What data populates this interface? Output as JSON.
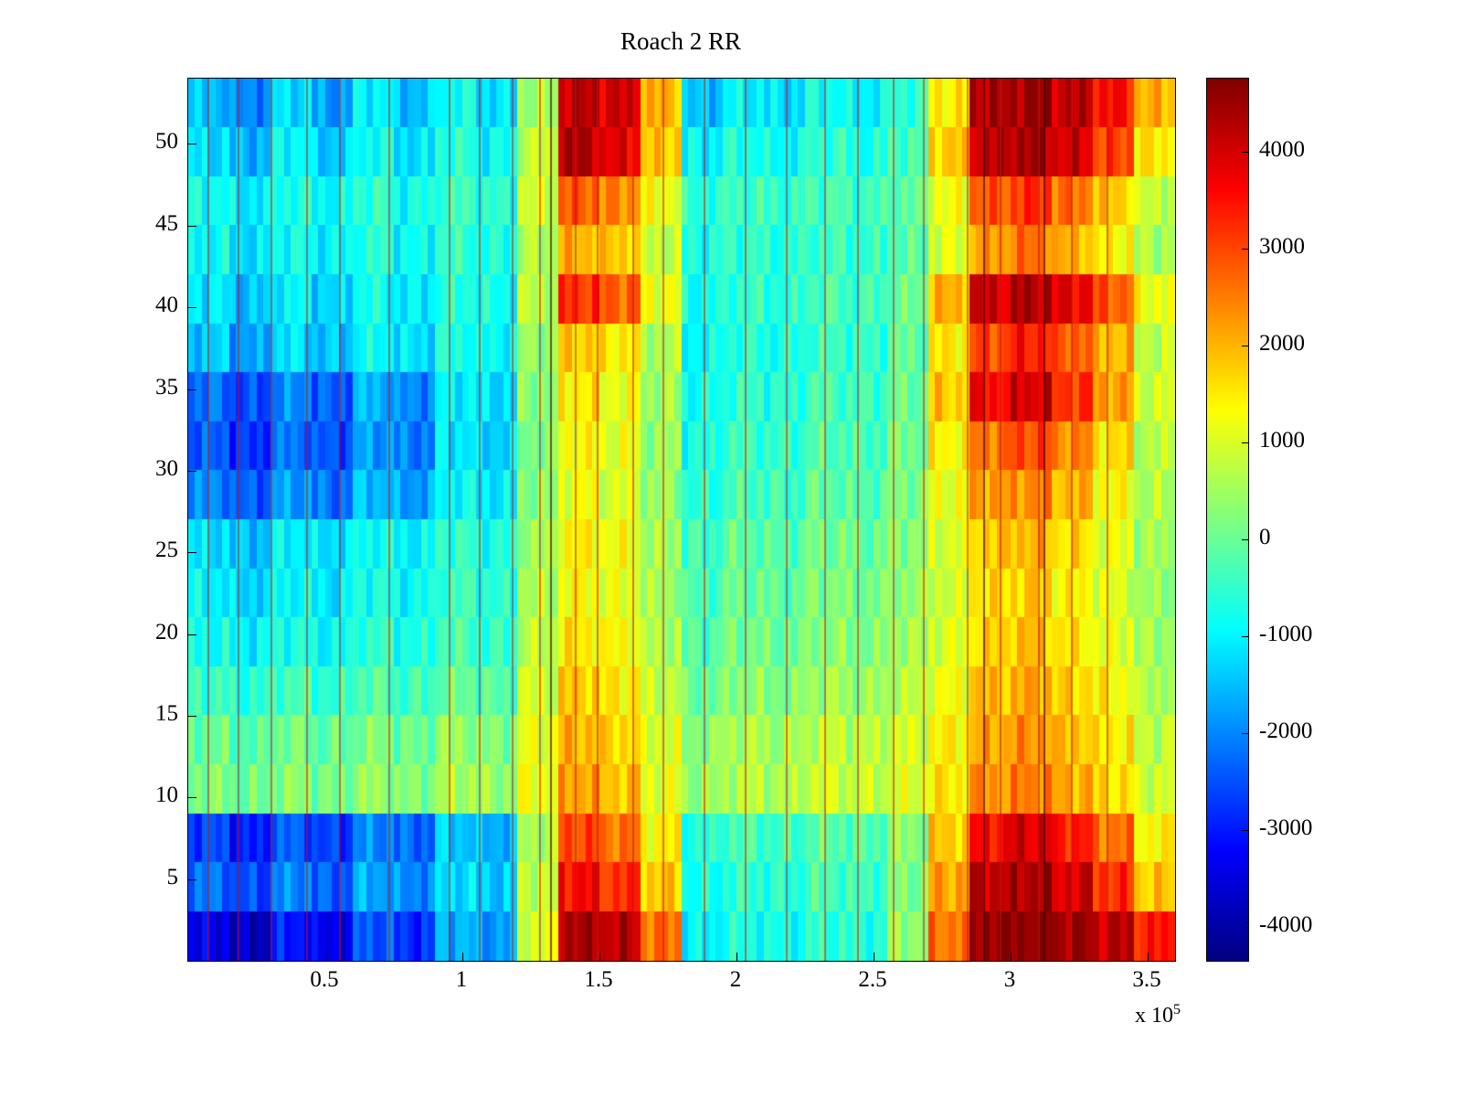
{
  "page": {
    "background": "#ffffff",
    "axis_color": "#000000"
  },
  "chart_data": {
    "type": "heatmap",
    "title": "Roach 2 RR",
    "colormap": "jet",
    "x_range_raw": [
      0,
      360000
    ],
    "x_units_displayed": "1e5",
    "y_range": [
      0,
      54
    ],
    "x_ticks_1e5": [
      0.5,
      1,
      1.5,
      2,
      2.5,
      3,
      3.5
    ],
    "x_tick_labels": [
      "0.5",
      "1",
      "1.5",
      "2",
      "2.5",
      "3",
      "3.5"
    ],
    "x_scale_label": {
      "prefix": "x 10",
      "exponent": "5"
    },
    "y_ticks": [
      5,
      10,
      15,
      20,
      25,
      30,
      35,
      40,
      45,
      50
    ],
    "y_tick_labels": [
      "5",
      "10",
      "15",
      "20",
      "25",
      "30",
      "35",
      "40",
      "45",
      "50"
    ],
    "colorbar": {
      "min": -4350,
      "max": 4750,
      "tick_values": [
        4000,
        3000,
        2000,
        1000,
        0,
        -1000,
        -2000,
        -3000,
        -4000
      ],
      "tick_labels": [
        "4000",
        "3000",
        "2000",
        "1000",
        "0",
        "-1000",
        "-2000",
        "-3000",
        "-4000"
      ]
    },
    "grid": {
      "orientation": "first row corresponds to top of plot (y 51-54), columns left to right (x 0 to 3.6e5)",
      "rows": 18,
      "cols": 24,
      "row_y_spans": [
        [
          51,
          54
        ],
        [
          48,
          51
        ],
        [
          45,
          48
        ],
        [
          42,
          45
        ],
        [
          39,
          42
        ],
        [
          36,
          39
        ],
        [
          33,
          36
        ],
        [
          30,
          33
        ],
        [
          27,
          30
        ],
        [
          24,
          27
        ],
        [
          21,
          24
        ],
        [
          18,
          21
        ],
        [
          15,
          18
        ],
        [
          12,
          15
        ],
        [
          9,
          12
        ],
        [
          6,
          9
        ],
        [
          3,
          6
        ],
        [
          0,
          3
        ]
      ],
      "values": [
        [
          -1500,
          -2000,
          -1200,
          -1800,
          -1000,
          -1500,
          -800,
          -1200,
          500,
          4200,
          4000,
          2000,
          -1500,
          -1000,
          -1200,
          -800,
          -1000,
          -500,
          1500,
          4300,
          4500,
          4200,
          3500,
          2000
        ],
        [
          -1200,
          -1600,
          -900,
          -1400,
          -800,
          -1200,
          -600,
          -900,
          800,
          4300,
          3800,
          1800,
          -1000,
          -700,
          -900,
          -500,
          -700,
          -300,
          1800,
          4200,
          4400,
          4000,
          3000,
          1500
        ],
        [
          -800,
          -1100,
          -700,
          -900,
          -500,
          -800,
          -400,
          -600,
          900,
          2800,
          2400,
          1200,
          -600,
          -400,
          -500,
          -300,
          -400,
          -100,
          1200,
          2800,
          3200,
          2600,
          1800,
          800
        ],
        [
          -900,
          -1200,
          -800,
          -1000,
          -600,
          -900,
          -500,
          -700,
          600,
          2000,
          1800,
          800,
          -700,
          -500,
          -600,
          -400,
          -500,
          -200,
          1000,
          2200,
          2600,
          2000,
          1400,
          600
        ],
        [
          -1100,
          -1500,
          -1000,
          -1300,
          -800,
          -1100,
          -600,
          -800,
          700,
          3200,
          2800,
          1200,
          -800,
          -500,
          -600,
          -300,
          -400,
          0,
          2000,
          4000,
          4300,
          3800,
          2800,
          1200
        ],
        [
          -1400,
          -1800,
          -1200,
          -1500,
          -900,
          -1200,
          -700,
          -900,
          400,
          1800,
          1500,
          600,
          -900,
          -600,
          -700,
          -400,
          -500,
          -100,
          1500,
          3000,
          3400,
          2800,
          2000,
          800
        ],
        [
          -2200,
          -2600,
          -2000,
          -2400,
          -1600,
          -2000,
          -1000,
          -1200,
          300,
          1500,
          1200,
          500,
          -800,
          -500,
          -600,
          -300,
          -400,
          0,
          1800,
          3600,
          4000,
          3200,
          2200,
          900
        ],
        [
          -2400,
          -2800,
          -2200,
          -2500,
          -1800,
          -2100,
          -1100,
          -1300,
          200,
          1300,
          1100,
          400,
          -700,
          -400,
          -500,
          -200,
          -300,
          100,
          1400,
          2600,
          3000,
          2400,
          1600,
          700
        ],
        [
          -2000,
          -2400,
          -1800,
          -2200,
          -1500,
          -1800,
          -900,
          -1100,
          300,
          1200,
          1000,
          400,
          -600,
          -300,
          -400,
          -100,
          -200,
          200,
          1200,
          2200,
          2400,
          2000,
          1300,
          600
        ],
        [
          -1200,
          -1500,
          -1000,
          -1200,
          -800,
          -1000,
          -500,
          -700,
          500,
          1400,
          1200,
          500,
          -400,
          -100,
          -200,
          100,
          0,
          300,
          1000,
          1800,
          2000,
          1600,
          1100,
          500
        ],
        [
          -1000,
          -1300,
          -900,
          -1100,
          -700,
          -900,
          -400,
          -600,
          600,
          1300,
          1100,
          500,
          -300,
          0,
          -100,
          200,
          100,
          400,
          900,
          1600,
          1800,
          1400,
          1000,
          400
        ],
        [
          -800,
          -1000,
          -700,
          -900,
          -500,
          -700,
          -300,
          -500,
          700,
          1500,
          1300,
          600,
          -200,
          100,
          0,
          300,
          200,
          500,
          1000,
          1700,
          1900,
          1500,
          1100,
          500
        ],
        [
          -400,
          -600,
          -300,
          -500,
          -200,
          -400,
          0,
          -200,
          900,
          1800,
          1500,
          800,
          0,
          300,
          200,
          500,
          400,
          700,
          1200,
          1900,
          2100,
          1700,
          1300,
          600
        ],
        [
          0,
          -200,
          100,
          -100,
          200,
          0,
          400,
          200,
          1100,
          2000,
          1700,
          1000,
          300,
          600,
          500,
          800,
          700,
          900,
          1400,
          2100,
          2300,
          1900,
          1500,
          800
        ],
        [
          200,
          0,
          300,
          100,
          400,
          200,
          600,
          400,
          1200,
          2200,
          1900,
          1100,
          400,
          700,
          600,
          900,
          800,
          1000,
          1500,
          2300,
          2500,
          2100,
          1600,
          900
        ],
        [
          -2600,
          -3000,
          -2400,
          -2700,
          -2000,
          -2300,
          -1400,
          -1600,
          600,
          3000,
          2600,
          1400,
          -600,
          -300,
          -400,
          -100,
          -200,
          300,
          1800,
          3600,
          4000,
          3400,
          2600,
          1400
        ],
        [
          -2200,
          -2600,
          -2000,
          -2400,
          -1700,
          -2000,
          -1200,
          -1400,
          800,
          3600,
          3200,
          1800,
          -800,
          -500,
          -600,
          -300,
          -400,
          200,
          2200,
          4200,
          4400,
          4000,
          3200,
          1800
        ],
        [
          -3400,
          -3800,
          -3000,
          -3400,
          -2400,
          -2800,
          -1600,
          -1800,
          1000,
          4400,
          4200,
          2600,
          -1000,
          -700,
          -800,
          -500,
          -600,
          400,
          2600,
          4600,
          4700,
          4500,
          4200,
          3400
        ]
      ]
    },
    "vertical_streaks_x_1e5": [
      0.07,
      0.18,
      0.3,
      0.43,
      0.55,
      0.73,
      0.95,
      1.06,
      1.18,
      1.28,
      1.41,
      1.49,
      1.62,
      1.73,
      1.88,
      2.03,
      2.18,
      2.32,
      2.44,
      2.57,
      2.68,
      2.84,
      2.96,
      3.1,
      3.22,
      3.35
    ],
    "dark_streaks_x_1e5": [
      1.32,
      2.9,
      3.12
    ]
  }
}
